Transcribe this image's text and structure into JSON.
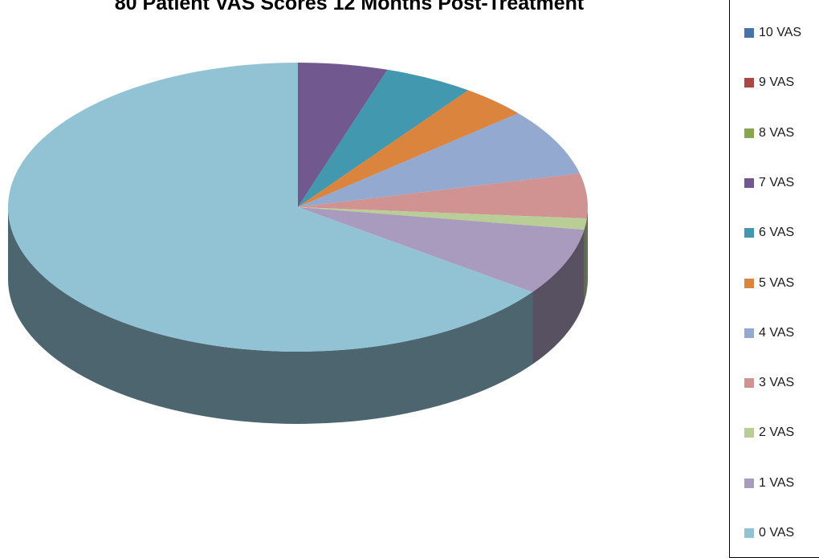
{
  "chart_data": {
    "type": "pie",
    "title": "80 Patient VAS Scores 12 Months Post-Treatment",
    "categories": [
      "10 VAS",
      "9 VAS",
      "8 VAS",
      "7 VAS",
      "6 VAS",
      "5 VAS",
      "4 VAS",
      "3 VAS",
      "2 VAS",
      "1 VAS",
      "0 VAS"
    ],
    "values": [
      0,
      0,
      0,
      4,
      4,
      3,
      6,
      4,
      1,
      6,
      52
    ],
    "colors": [
      "#4572A7",
      "#AA4643",
      "#89A54E",
      "#71588F",
      "#4198AF",
      "#DB843D",
      "#93A9CF",
      "#D19392",
      "#B9CD96",
      "#A99BBD",
      "#92C3D5"
    ],
    "legend_position": "right",
    "style": "3d"
  }
}
